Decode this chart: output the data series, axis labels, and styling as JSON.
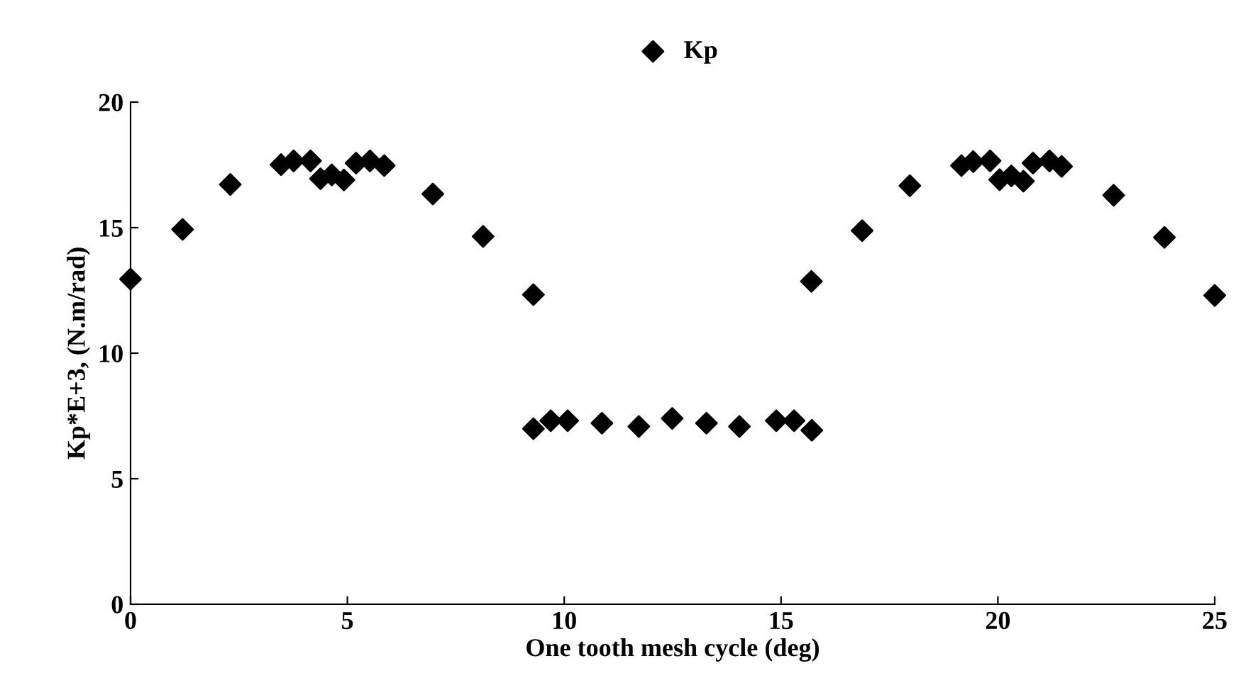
{
  "chart_data": {
    "type": "scatter",
    "xlabel": "One tooth mesh cycle (deg)",
    "ylabel": "Kp*E+3, (N.m/rad)",
    "xlim": [
      0,
      25
    ],
    "ylim": [
      0,
      20
    ],
    "xticks": [
      0,
      5,
      10,
      15,
      20,
      25
    ],
    "yticks": [
      0,
      5,
      10,
      15,
      20
    ],
    "grid": false,
    "legend": "top",
    "marker": "diamond",
    "series": [
      {
        "name": "Kp",
        "color": "#000000",
        "x": [
          0,
          1.2,
          2.3,
          3.47,
          3.76,
          4.15,
          4.38,
          4.64,
          4.92,
          5.2,
          5.52,
          5.85,
          6.97,
          8.13,
          9.29,
          9.29,
          9.69,
          10.08,
          10.87,
          11.72,
          12.49,
          13.28,
          14.04,
          14.89,
          15.3,
          15.71,
          15.7,
          16.87,
          17.97,
          19.16,
          19.43,
          19.82,
          20.04,
          20.31,
          20.59,
          20.81,
          21.19,
          21.47,
          22.67,
          23.84,
          25.0
        ],
        "values": [
          12.95,
          14.93,
          16.72,
          17.51,
          17.66,
          17.66,
          16.95,
          17.1,
          16.9,
          17.57,
          17.66,
          17.47,
          16.34,
          14.65,
          12.33,
          6.99,
          7.31,
          7.31,
          7.21,
          7.08,
          7.4,
          7.21,
          7.08,
          7.31,
          7.31,
          6.93,
          12.86,
          14.88,
          16.67,
          17.47,
          17.63,
          17.66,
          16.91,
          17.06,
          16.85,
          17.57,
          17.66,
          17.44,
          16.29,
          14.61,
          12.3
        ]
      }
    ]
  }
}
